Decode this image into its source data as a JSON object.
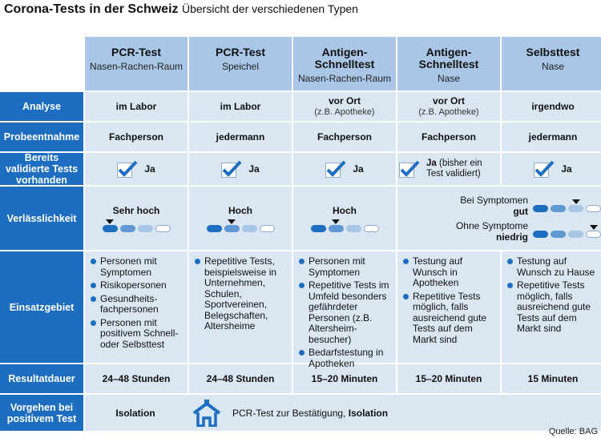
{
  "title": {
    "main": "Corona-Tests in der Schweiz",
    "subtitle": "Übersicht der verschiedenen Typen"
  },
  "columns": [
    {
      "name": "PCR-Test",
      "sub": "Nasen-Rachen-Raum"
    },
    {
      "name": "PCR-Test",
      "sub": "Speichel"
    },
    {
      "name": "Antigen-Schnelltest",
      "sub": "Nasen-Rachen-Raum"
    },
    {
      "name": "Antigen-Schnelltest",
      "sub": "Nase"
    },
    {
      "name": "Selbsttest",
      "sub": "Nase"
    }
  ],
  "rows": {
    "analyse": "Analyse",
    "probe": "Probeentnahme",
    "valid": "Bereits validierte Tests vorhanden",
    "rel": "Verlässlichkeit",
    "use": "Einsatzgebiet",
    "dauer": "Resultatdauer",
    "positiv": "Vorgehen bei positivem Test"
  },
  "analyse": [
    {
      "main": "im Labor",
      "sub": ""
    },
    {
      "main": "im Labor",
      "sub": ""
    },
    {
      "main": "vor Ort",
      "sub": "(z.B. Apotheke)"
    },
    {
      "main": "vor Ort",
      "sub": "(z.B. Apotheke)"
    },
    {
      "main": "irgendwo",
      "sub": ""
    }
  ],
  "probe": [
    "Fachperson",
    "jedermann",
    "Fachperson",
    "Fachperson",
    "jedermann"
  ],
  "valid": {
    "ja": "Ja",
    "col4_bold": "Ja",
    "col4_rest": " (bisher ein Test validiert)"
  },
  "reliability": {
    "c1": {
      "label": "Sehr hoch",
      "level": 4
    },
    "c2": {
      "label": "Hoch",
      "level": 3
    },
    "c3": {
      "label": "Hoch",
      "level": 3
    },
    "combo": {
      "with_label": "Bei Symptomen",
      "with_value": "gut",
      "with_level": 3,
      "without_label": "Ohne Symptome",
      "without_value": "niedrig",
      "without_level": 4
    }
  },
  "use": [
    [
      "Personen mit Symptomen",
      "Risikopersonen",
      "Gesundheits-fachpersonen",
      "Personen mit positivem Schnell- oder Selbsttest"
    ],
    [
      "Repetitive Tests, beispielsweise in Unternehmen, Schulen, Sportvereinen, Belegschaften, Altersheime"
    ],
    [
      "Personen mit Symptomen",
      "Repetitive Tests im Umfeld besonders gefährdeter Personen (z.B. Altersheim-besucher)",
      "Bedarfstestung in Apotheken"
    ],
    [
      "Testung auf Wunsch in Apotheken",
      "Repetitive Tests möglich, falls ausreichend gute Tests auf dem Markt sind"
    ],
    [
      "Testung auf Wunsch zu Hause",
      "Repetitive Tests möglich, falls ausreichend gute Tests auf dem Markt sind"
    ]
  ],
  "dauer": [
    "24–48 Stunden",
    "24–48 Stunden",
    "15–20 Minuten",
    "15–20 Minuten",
    "15 Minuten"
  ],
  "positiv": {
    "left": "Isolation",
    "right_plain": "PCR-Test zur Bestätigung, ",
    "right_bold": "Isolation"
  },
  "icons": {
    "check": "check-icon",
    "arrow": "arrow-marker-icon",
    "house": "house-icon"
  },
  "colors": {
    "label_bg": "#1d6ec0",
    "header_bg": "#a9c6e6",
    "cell_bg": "#dbe6f3"
  },
  "source": "Quelle: BAG"
}
